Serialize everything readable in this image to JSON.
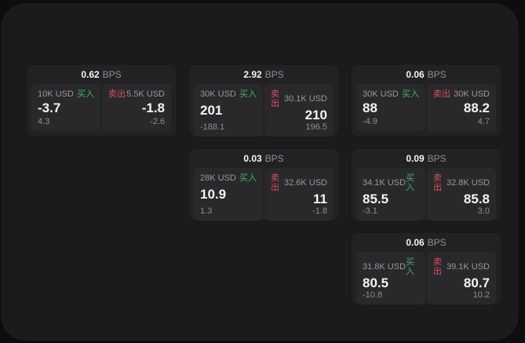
{
  "theme": {
    "outer_bg": "#0d0d0f",
    "panel_bg": "#1b1b1d",
    "card_bg": "#222224",
    "subcard_bg": "#29292b",
    "text_primary": "#f4f4f5",
    "text_secondary": "#98989d",
    "text_tertiary": "#8f8f94",
    "buy_color": "#40b465",
    "sell_color": "#e14c62"
  },
  "labels": {
    "bps_unit": "BPS",
    "buy": "买入",
    "sell": "卖出"
  },
  "cards": [
    {
      "bps": "0.62",
      "buy": {
        "size": "10K USD",
        "price": "-3.7",
        "delta": "4.3"
      },
      "sell": {
        "size": "5.5K USD",
        "price": "-1.8",
        "delta": "-2.6"
      }
    },
    {
      "bps": "2.92",
      "buy": {
        "size": "30K USD",
        "price": "201",
        "delta": "-188.1"
      },
      "sell": {
        "size": "30.1K USD",
        "price": "210",
        "delta": "196.5"
      }
    },
    {
      "bps": "0.06",
      "buy": {
        "size": "30K USD",
        "price": "88",
        "delta": "-4.9"
      },
      "sell": {
        "size": "30K USD",
        "price": "88.2",
        "delta": "4.7"
      }
    },
    {
      "bps": "0.03",
      "buy": {
        "size": "28K USD",
        "price": "10.9",
        "delta": "1.3"
      },
      "sell": {
        "size": "32.6K USD",
        "price": "11",
        "delta": "-1.8"
      }
    },
    {
      "bps": "0.09",
      "buy": {
        "size": "34.1K USD",
        "price": "85.5",
        "delta": "-3.1"
      },
      "sell": {
        "size": "32.8K USD",
        "price": "85.8",
        "delta": "3.0"
      }
    },
    {
      "bps": "0.06",
      "buy": {
        "size": "31.8K USD",
        "price": "80.5",
        "delta": "-10.8"
      },
      "sell": {
        "size": "39.1K USD",
        "price": "80.7",
        "delta": "10.2"
      }
    }
  ]
}
